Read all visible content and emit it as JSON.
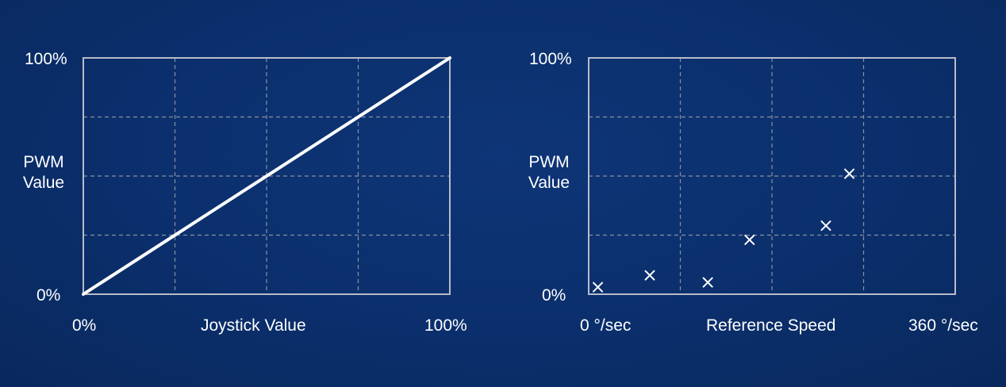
{
  "colors": {
    "background": "#0b2f6c",
    "frame": "#b8bcc8",
    "grid": "#8a90a0",
    "mark": "#ffffff"
  },
  "chart_data": [
    {
      "type": "line",
      "ylabel": [
        "PWM",
        "Value"
      ],
      "xlabel": "Joystick Value",
      "x_tick_labels": [
        "0%",
        "100%"
      ],
      "y_tick_labels": [
        "0%",
        "100%"
      ],
      "xlim": [
        0,
        100
      ],
      "ylim": [
        0,
        100
      ],
      "grid": true,
      "x": [
        0,
        100
      ],
      "y": [
        0,
        100
      ]
    },
    {
      "type": "scatter",
      "ylabel": [
        "PWM",
        "Value"
      ],
      "xlabel": "Reference Speed",
      "x_tick_labels": [
        "0 °/sec",
        "360 °/sec"
      ],
      "y_tick_labels": [
        "0%",
        "100%"
      ],
      "xlim": [
        0,
        360
      ],
      "ylim": [
        0,
        100
      ],
      "grid": true,
      "x": [
        9,
        60,
        117,
        158,
        233,
        256
      ],
      "y": [
        3,
        8,
        5,
        23,
        29,
        51
      ]
    }
  ]
}
